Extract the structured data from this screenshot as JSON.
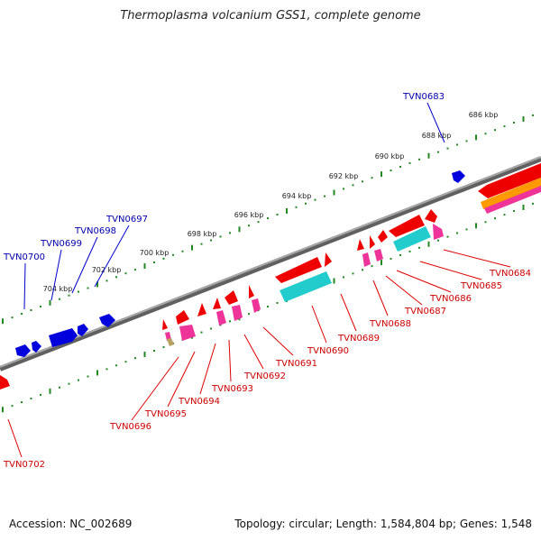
{
  "title": "Thermoplasma volcanium GSS1, complete genome",
  "footer": {
    "accession": "Accession: NC_002689",
    "stats": "Topology: circular; Length: 1,584,804 bp; Genes: 1,548"
  },
  "ruler": {
    "unit": "kbp",
    "ticks": [
      {
        "label": "686 kbp"
      },
      {
        "label": "688 kbp"
      },
      {
        "label": "690 kbp"
      },
      {
        "label": "692 kbp"
      },
      {
        "label": "694 kbp"
      },
      {
        "label": "696 kbp"
      },
      {
        "label": "698 kbp"
      },
      {
        "label": "700 kbp"
      },
      {
        "label": "702 kbp"
      },
      {
        "label": "704 kbp"
      }
    ]
  },
  "colors": {
    "backbone": "#808080",
    "forward_gene": "#0000dd",
    "reverse_gene": "#ee0000",
    "forward_label": "#0000aa",
    "reverse_label": "#cc0000",
    "cyan_feature": "#22cccc",
    "magenta_feature": "#ee3399",
    "orange_feature": "#ff9900",
    "tick_green": "#228822"
  },
  "genes": {
    "forward_strand": [
      "TVN0683",
      "TVN0697",
      "TVN0698",
      "TVN0699",
      "TVN0700"
    ],
    "reverse_strand": [
      "TVN0684",
      "TVN0685",
      "TVN0686",
      "TVN0687",
      "TVN0688",
      "TVN0689",
      "TVN0690",
      "TVN0691",
      "TVN0692",
      "TVN0693",
      "TVN0694",
      "TVN0695",
      "TVN0696",
      "TVN0702"
    ]
  }
}
